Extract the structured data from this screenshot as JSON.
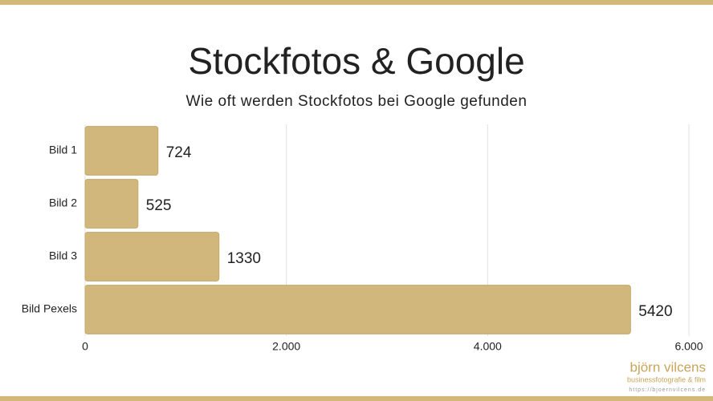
{
  "chart_data": {
    "type": "bar",
    "orientation": "horizontal",
    "title": "Stockfotos & Google",
    "subtitle": "Wie oft werden Stockfotos bei Google gefunden",
    "categories": [
      "Bild 1",
      "Bild 2",
      "Bild 3",
      "Bild Pexels"
    ],
    "values": [
      724,
      525,
      1330,
      5420
    ],
    "color": "#d1b77c",
    "xlim": [
      0,
      6000
    ],
    "xticks": [
      0,
      {
        "value": 2000,
        "label": "2.000"
      },
      {
        "value": 4000,
        "label": "4.000"
      },
      {
        "value": 6000,
        "label": "6.000"
      }
    ],
    "grid": true
  },
  "branding": {
    "name": "björn vilcens",
    "tagline": "businessfotografie & film",
    "url": "https://bjoernvilcens.de"
  }
}
